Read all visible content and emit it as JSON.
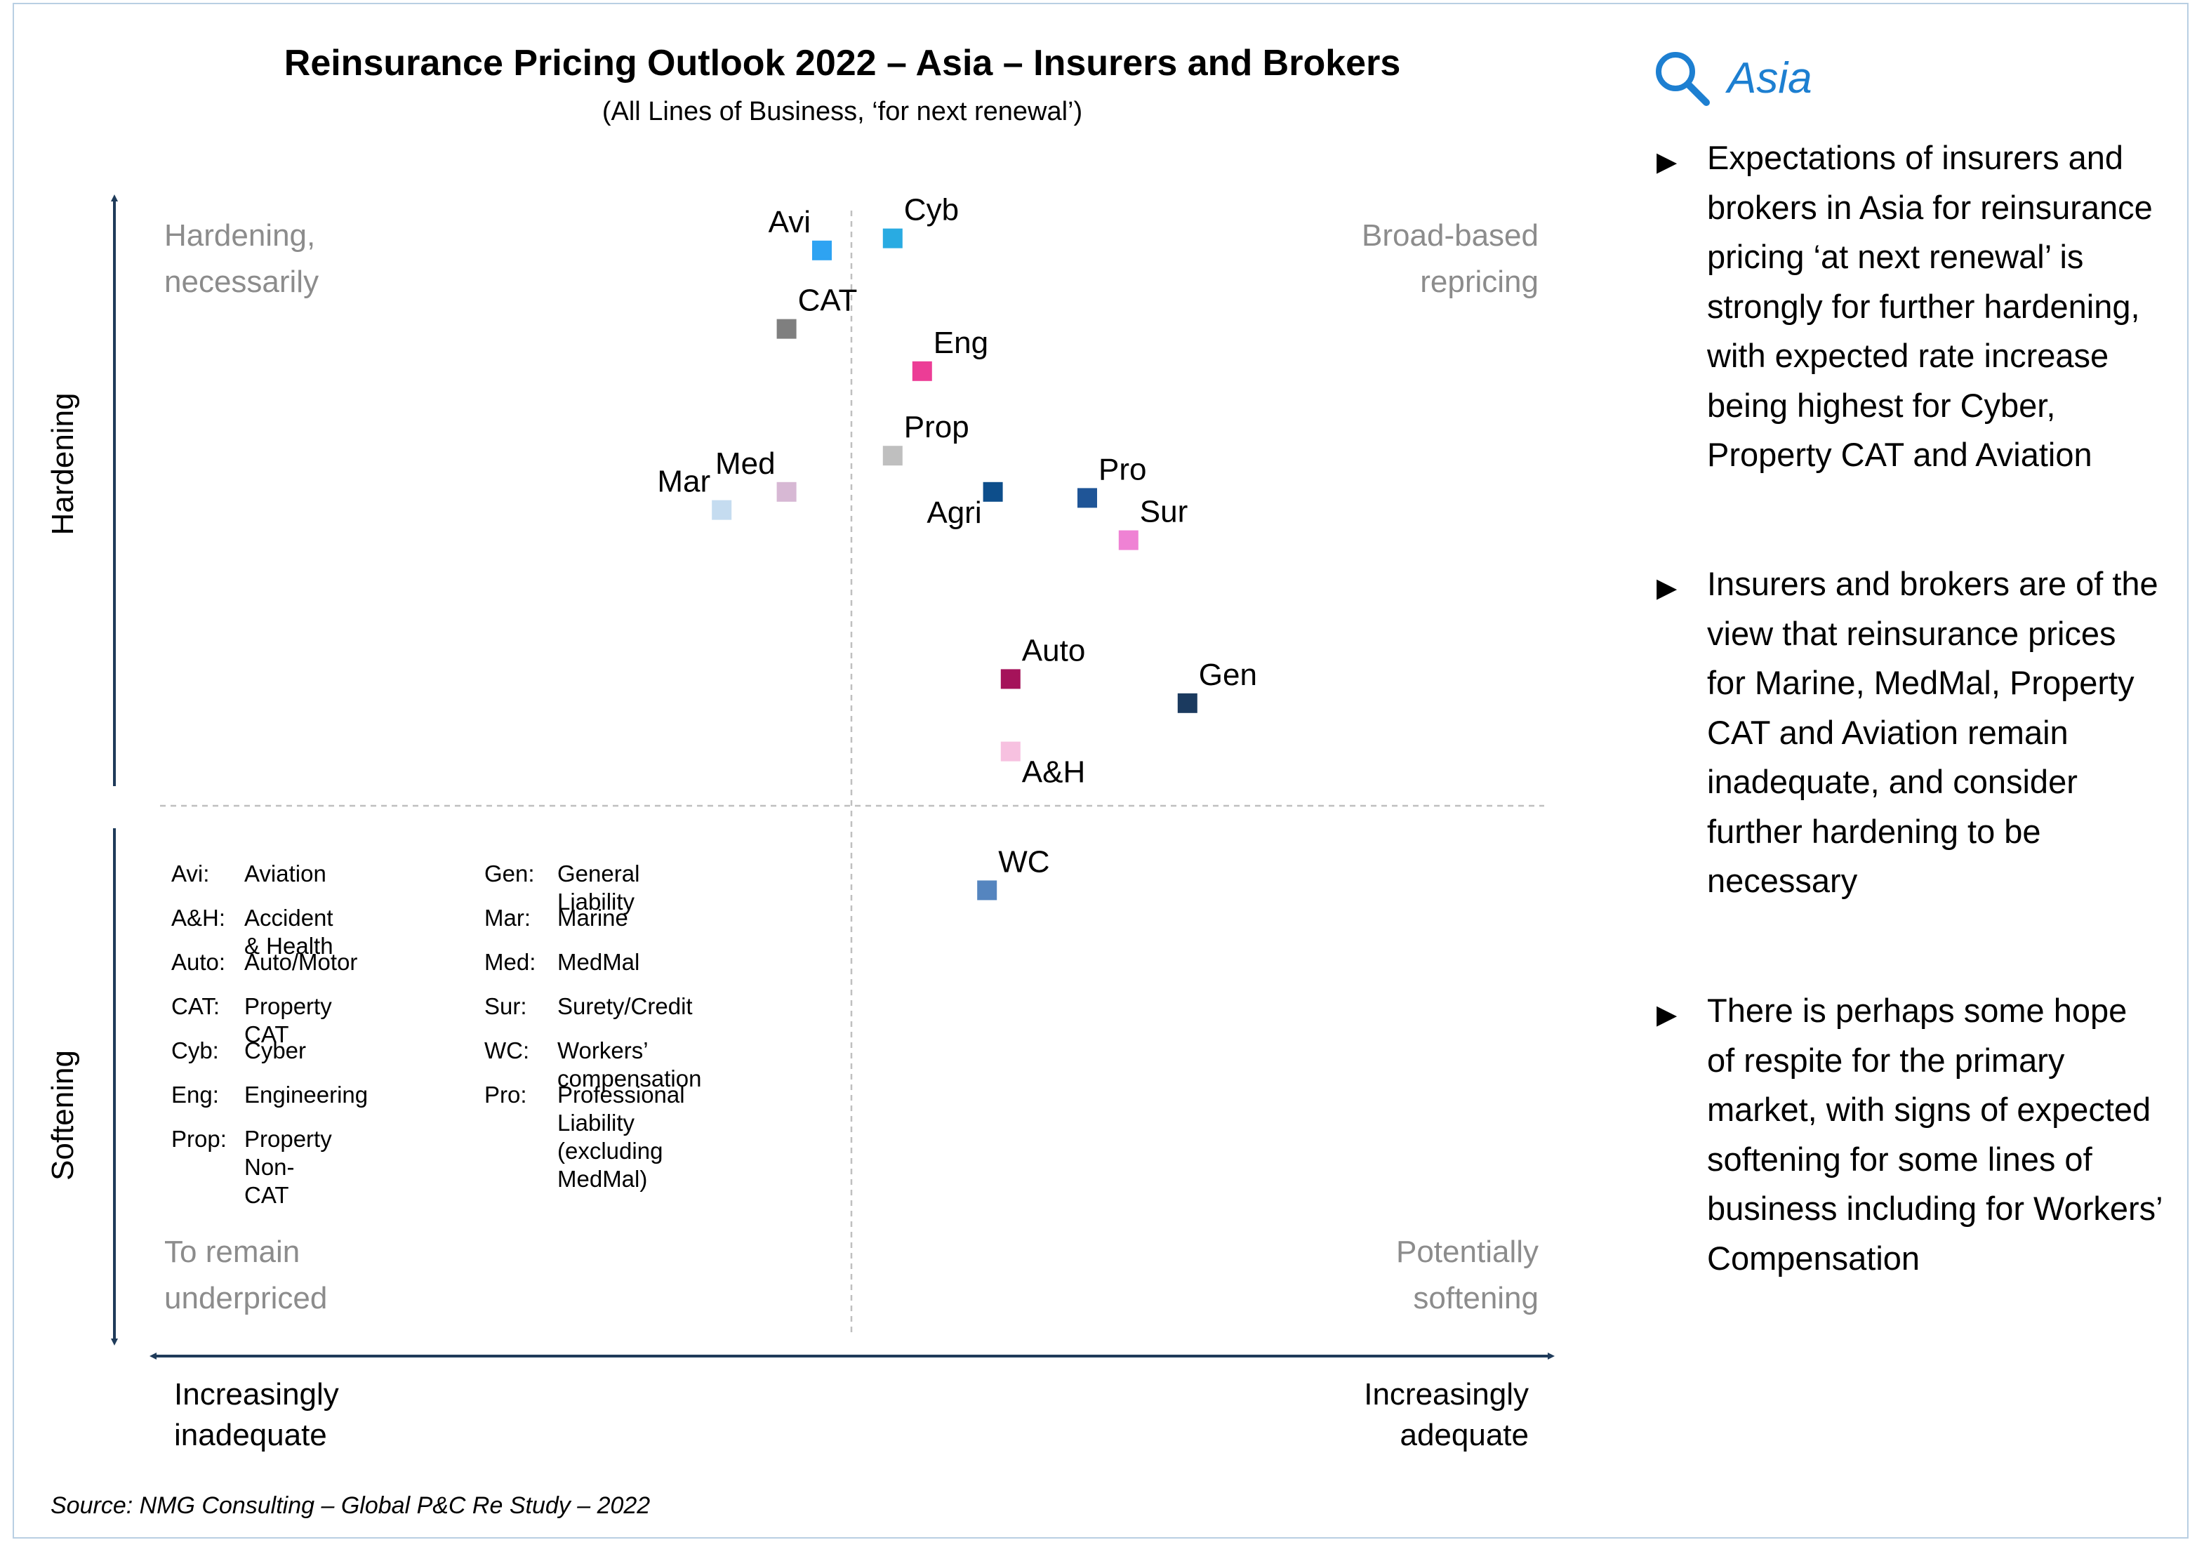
{
  "title": "Reinsurance Pricing Outlook 2022 – Asia – Insurers and Brokers",
  "subtitle": "(All Lines of Business, ‘for next renewal’)",
  "quadrant_labels": {
    "top_left": [
      "Hardening,",
      "necessarily"
    ],
    "top_right": [
      "Broad-based",
      "repricing"
    ],
    "bottom_left": [
      "To remain",
      "underpriced"
    ],
    "bottom_right": [
      "Potentially",
      "softening"
    ]
  },
  "axes": {
    "y_top": "Hardening",
    "y_bottom": "Softening",
    "x_left": [
      "Increasingly",
      "inadequate"
    ],
    "x_right": [
      "Increasingly",
      "adequate"
    ]
  },
  "chart_data": {
    "type": "scatter",
    "title": "Reinsurance Pricing Outlook 2022 – Asia – Insurers and Brokers",
    "subtitle": "(All Lines of Business, ‘for next renewal’)",
    "xlabel": "Increasingly inadequate → Increasingly adequate",
    "ylabel": "Softening → Hardening",
    "x_scale": "relative position (-1 = increasingly inadequate, +1 = increasingly adequate)",
    "y_scale": "relative position (-1 = softening, +1 = hardening)",
    "xlim": [
      -1,
      1
    ],
    "ylim": [
      -1,
      1
    ],
    "grid": false,
    "legend": "glossary bottom-left",
    "points": [
      {
        "label": "Avi",
        "x": -0.05,
        "y": 0.92,
        "color": "#2ea3f2",
        "label_pos": "top-left"
      },
      {
        "label": "Cyb",
        "x": 0.07,
        "y": 0.94,
        "color": "#29abe2",
        "label_pos": "top-right"
      },
      {
        "label": "CAT",
        "x": -0.11,
        "y": 0.79,
        "color": "#7f7f7f",
        "label_pos": "top-right"
      },
      {
        "label": "Eng",
        "x": 0.12,
        "y": 0.72,
        "color": "#ec3d96",
        "label_pos": "top-right"
      },
      {
        "label": "Prop",
        "x": 0.07,
        "y": 0.58,
        "color": "#bfbfbf",
        "label_pos": "top-right"
      },
      {
        "label": "Med",
        "x": -0.11,
        "y": 0.52,
        "color": "#d7b8d4",
        "label_pos": "top-left"
      },
      {
        "label": "Mar",
        "x": -0.22,
        "y": 0.49,
        "color": "#c5dcf0",
        "label_pos": "top-left"
      },
      {
        "label": "Agri",
        "x": 0.24,
        "y": 0.52,
        "color": "#0d4e8b",
        "label_pos": "bottom-left"
      },
      {
        "label": "Pro",
        "x": 0.4,
        "y": 0.51,
        "color": "#1f5597",
        "label_pos": "top-right"
      },
      {
        "label": "Sur",
        "x": 0.47,
        "y": 0.44,
        "color": "#ef82d4",
        "label_pos": "top-right"
      },
      {
        "label": "Auto",
        "x": 0.27,
        "y": 0.21,
        "color": "#a5135a",
        "label_pos": "top-right"
      },
      {
        "label": "Gen",
        "x": 0.57,
        "y": 0.17,
        "color": "#1b3a5f",
        "label_pos": "top-right"
      },
      {
        "label": "A&H",
        "x": 0.27,
        "y": 0.09,
        "color": "#f7c1e0",
        "label_pos": "bottom-right"
      },
      {
        "label": "WC",
        "x": 0.23,
        "y": -0.14,
        "color": "#5585bf",
        "label_pos": "top-right"
      }
    ]
  },
  "glossary": [
    {
      "abbr": "Avi:",
      "full": "Aviation"
    },
    {
      "abbr": "A&H:",
      "full": "Accident & Health"
    },
    {
      "abbr": "Auto:",
      "full": "Auto/Motor"
    },
    {
      "abbr": "CAT:",
      "full": "Property CAT"
    },
    {
      "abbr": "Cyb:",
      "full": "Cyber"
    },
    {
      "abbr": "Eng:",
      "full": "Engineering"
    },
    {
      "abbr": "Prop:",
      "full": "Property Non-CAT"
    },
    {
      "abbr": "Gen:",
      "full": "General Liability"
    },
    {
      "abbr": "Mar:",
      "full": "Marine"
    },
    {
      "abbr": "Med:",
      "full": "MedMal"
    },
    {
      "abbr": "Sur:",
      "full": "Surety/Credit"
    },
    {
      "abbr": "WC:",
      "full": "Workers’ compensation"
    },
    {
      "abbr": "Pro:",
      "full": "Professional Liability\n(excluding MedMal)"
    }
  ],
  "sidebar": {
    "heading": "Asia",
    "icon": "magnifier-icon",
    "accent_color": "#1d7fd1",
    "bullets": [
      "Expectations of insurers and brokers in Asia for reinsurance pricing ‘at next renewal’ is strongly for further hardening, with expected rate increase being highest for Cyber, Property CAT and Aviation",
      "Insurers and brokers are of the view that reinsurance prices for Marine, MedMal, Property CAT and Aviation remain inadequate, and consider further hardening to be necessary",
      "There is perhaps some hope of respite for the primary market, with signs of expected softening for some lines of business including for Workers’ Compensation"
    ]
  },
  "source": "Source: NMG Consulting – Global P&C Re Study – 2022"
}
